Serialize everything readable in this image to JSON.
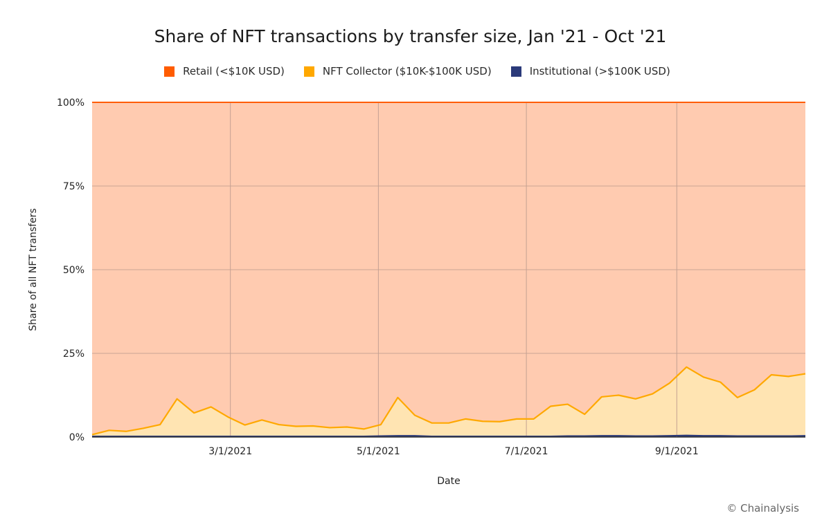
{
  "chart_data": {
    "type": "area",
    "stacked": true,
    "percent": true,
    "title": "Share of NFT transactions by transfer size, Jan '21 - Oct '21",
    "xlabel": "Date",
    "ylabel": "Share of all NFT transfers",
    "ylim": [
      0,
      100
    ],
    "yticks": [
      "0%",
      "25%",
      "50%",
      "75%",
      "100%"
    ],
    "x_range": [
      "2021-01-03",
      "2021-10-24"
    ],
    "xticks": [
      {
        "date": "2021-03-01",
        "label": "3/1/2021"
      },
      {
        "date": "2021-05-01",
        "label": "5/1/2021"
      },
      {
        "date": "2021-07-01",
        "label": "7/1/2021"
      },
      {
        "date": "2021-09-01",
        "label": "9/1/2021"
      }
    ],
    "grid": true,
    "legend_position": "top",
    "x": [
      "2021-01-03",
      "2021-01-10",
      "2021-01-17",
      "2021-01-24",
      "2021-01-31",
      "2021-02-07",
      "2021-02-14",
      "2021-02-21",
      "2021-02-28",
      "2021-03-07",
      "2021-03-14",
      "2021-03-21",
      "2021-03-28",
      "2021-04-04",
      "2021-04-11",
      "2021-04-18",
      "2021-04-25",
      "2021-05-02",
      "2021-05-09",
      "2021-05-16",
      "2021-05-23",
      "2021-05-30",
      "2021-06-06",
      "2021-06-13",
      "2021-06-20",
      "2021-06-27",
      "2021-07-04",
      "2021-07-11",
      "2021-07-18",
      "2021-07-25",
      "2021-08-01",
      "2021-08-08",
      "2021-08-15",
      "2021-08-22",
      "2021-08-29",
      "2021-09-05",
      "2021-09-12",
      "2021-09-19",
      "2021-09-26",
      "2021-10-03",
      "2021-10-10",
      "2021-10-17",
      "2021-10-24"
    ],
    "series": [
      {
        "name": "Retail (<$10K USD)",
        "color": "#ff5c00",
        "fill": "#ffcbb0",
        "values": [
          99.3,
          98.0,
          98.3,
          97.4,
          96.3,
          88.6,
          92.8,
          91.0,
          94.0,
          96.4,
          94.9,
          96.3,
          96.8,
          96.7,
          97.2,
          97.0,
          97.6,
          96.3,
          88.2,
          93.5,
          95.8,
          95.8,
          94.6,
          95.3,
          95.4,
          94.6,
          94.6,
          90.8,
          90.2,
          93.2,
          88.0,
          87.5,
          88.6,
          87.1,
          83.9,
          79.1,
          82.1,
          83.6,
          88.2,
          85.9,
          81.4,
          81.9,
          81.6
        ]
      },
      {
        "name": "NFT Collector ($10K-$100K USD)",
        "color": "#ffa800",
        "fill": "#ffe4b2",
        "values": [
          0.5,
          1.8,
          1.5,
          2.4,
          3.5,
          11.2,
          7.0,
          8.8,
          5.8,
          3.4,
          4.9,
          3.5,
          3.0,
          3.1,
          2.6,
          2.8,
          2.2,
          3.4,
          11.4,
          6.1,
          4.0,
          4.0,
          5.2,
          4.5,
          4.4,
          5.2,
          5.2,
          9.0,
          9.5,
          6.5,
          11.6,
          12.1,
          11.1,
          12.6,
          15.7,
          20.4,
          17.5,
          16.0,
          11.5,
          13.8,
          18.3,
          17.8,
          18.5
        ]
      },
      {
        "name": "Institutional (>$100K USD)",
        "color": "#2b3a7a",
        "fill": "#2b3a7a",
        "values": [
          0.2,
          0.2,
          0.2,
          0.2,
          0.2,
          0.2,
          0.2,
          0.2,
          0.2,
          0.2,
          0.2,
          0.2,
          0.2,
          0.2,
          0.2,
          0.2,
          0.2,
          0.3,
          0.4,
          0.4,
          0.2,
          0.2,
          0.2,
          0.2,
          0.2,
          0.2,
          0.2,
          0.2,
          0.3,
          0.3,
          0.4,
          0.4,
          0.3,
          0.3,
          0.4,
          0.5,
          0.4,
          0.4,
          0.3,
          0.3,
          0.3,
          0.3,
          0.4
        ]
      }
    ]
  },
  "credit": "© Chainalysis"
}
